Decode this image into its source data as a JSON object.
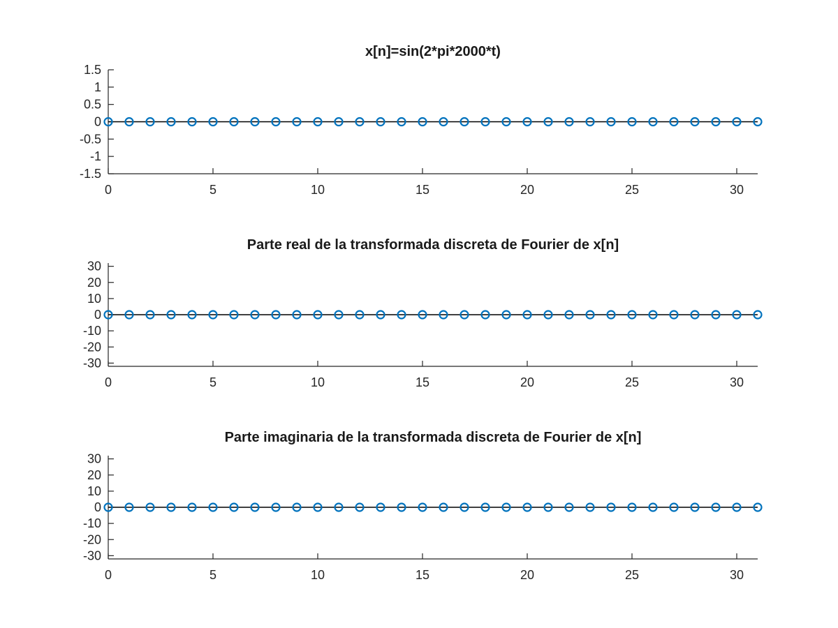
{
  "chart_data": [
    {
      "type": "stem",
      "title": "x[n]=sin(2*pi*2000*t)",
      "xlim": [
        0,
        31
      ],
      "ylim": [
        -1.5,
        1.5
      ],
      "xticks": [
        "0",
        "5",
        "10",
        "15",
        "20",
        "25",
        "30"
      ],
      "yticks": [
        "1.5",
        "1",
        "0.5",
        "0",
        "-0.5",
        "-1",
        "-1.5"
      ],
      "x": [
        0,
        1,
        2,
        3,
        4,
        5,
        6,
        7,
        8,
        9,
        10,
        11,
        12,
        13,
        14,
        15,
        16,
        17,
        18,
        19,
        20,
        21,
        22,
        23,
        24,
        25,
        26,
        27,
        28,
        29,
        30,
        31
      ],
      "values": [
        0,
        0,
        0,
        0,
        0,
        0,
        0,
        0,
        0,
        0,
        0,
        0,
        0,
        0,
        0,
        0,
        0,
        0,
        0,
        0,
        0,
        0,
        0,
        0,
        0,
        0,
        0,
        0,
        0,
        0,
        0,
        0
      ],
      "marker_color": "#0072bd"
    },
    {
      "type": "stem",
      "title": "Parte real de la transformada discreta de Fourier de x[n]",
      "xlim": [
        0,
        31
      ],
      "ylim": [
        -32,
        32
      ],
      "xticks": [
        "0",
        "5",
        "10",
        "15",
        "20",
        "25",
        "30"
      ],
      "yticks": [
        "30",
        "20",
        "10",
        "0",
        "-10",
        "-20",
        "-30"
      ],
      "x": [
        0,
        1,
        2,
        3,
        4,
        5,
        6,
        7,
        8,
        9,
        10,
        11,
        12,
        13,
        14,
        15,
        16,
        17,
        18,
        19,
        20,
        21,
        22,
        23,
        24,
        25,
        26,
        27,
        28,
        29,
        30,
        31
      ],
      "values": [
        0,
        0,
        0,
        0,
        0,
        0,
        0,
        0,
        0,
        0,
        0,
        0,
        0,
        0,
        0,
        0,
        0,
        0,
        0,
        0,
        0,
        0,
        0,
        0,
        0,
        0,
        0,
        0,
        0,
        0,
        0,
        0
      ],
      "marker_color": "#0072bd"
    },
    {
      "type": "stem",
      "title": "Parte imaginaria de la transformada discreta de Fourier de x[n]",
      "xlim": [
        0,
        31
      ],
      "ylim": [
        -32,
        32
      ],
      "xticks": [
        "0",
        "5",
        "10",
        "15",
        "20",
        "25",
        "30"
      ],
      "yticks": [
        "30",
        "20",
        "10",
        "0",
        "-10",
        "-20",
        "-30"
      ],
      "x": [
        0,
        1,
        2,
        3,
        4,
        5,
        6,
        7,
        8,
        9,
        10,
        11,
        12,
        13,
        14,
        15,
        16,
        17,
        18,
        19,
        20,
        21,
        22,
        23,
        24,
        25,
        26,
        27,
        28,
        29,
        30,
        31
      ],
      "values": [
        0,
        0,
        0,
        0,
        0,
        0,
        0,
        0,
        0,
        0,
        0,
        0,
        0,
        0,
        0,
        0,
        0,
        0,
        0,
        0,
        0,
        0,
        0,
        0,
        0,
        0,
        0,
        0,
        0,
        0,
        0,
        0
      ],
      "marker_color": "#0072bd"
    }
  ]
}
